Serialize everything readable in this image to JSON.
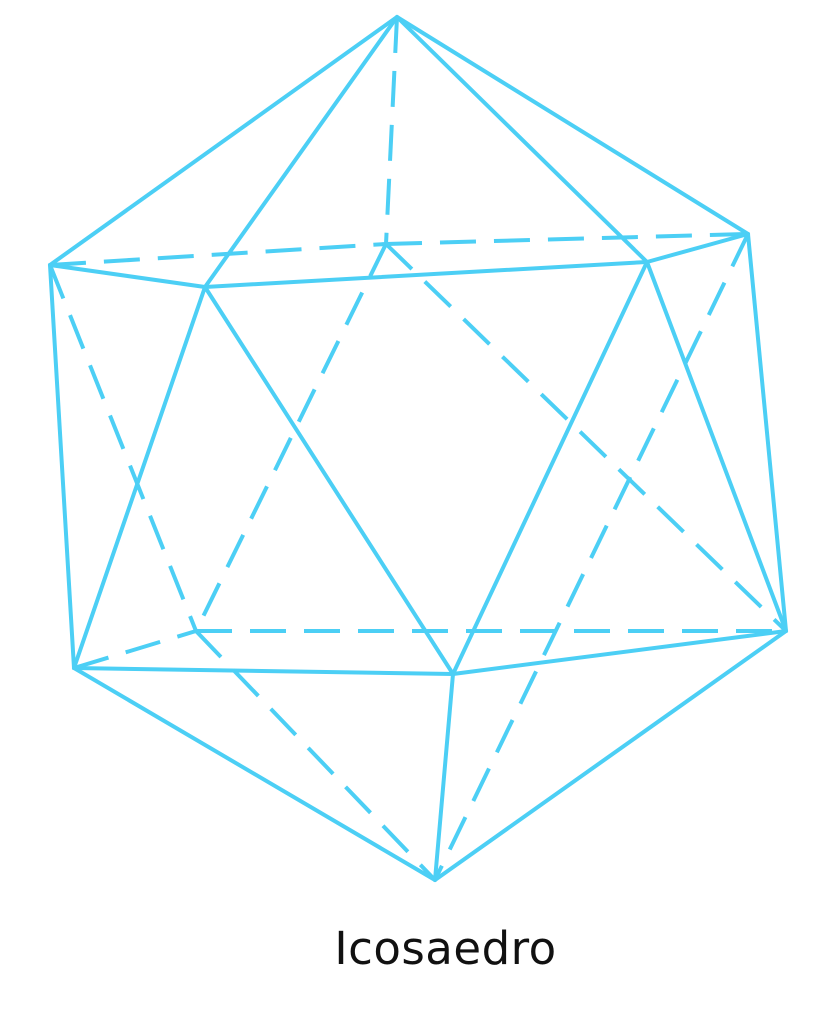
{
  "figure": {
    "caption": "Icosaedro",
    "line_color": "#4ccff5",
    "visible_edge_style": "solid",
    "hidden_edge_style": "dashed"
  }
}
